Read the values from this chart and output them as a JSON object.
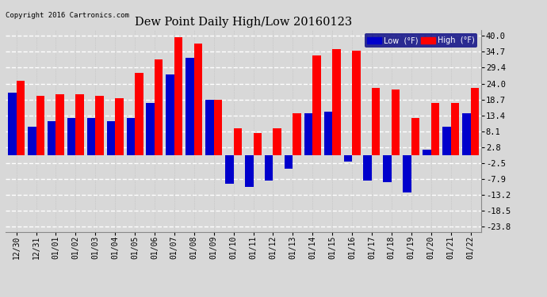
{
  "title": "Dew Point Daily High/Low 20160123",
  "copyright": "Copyright 2016 Cartronics.com",
  "dates": [
    "12/30",
    "12/31",
    "01/01",
    "01/02",
    "01/03",
    "01/04",
    "01/05",
    "01/06",
    "01/07",
    "01/08",
    "01/09",
    "01/10",
    "01/11",
    "01/12",
    "01/13",
    "01/14",
    "01/15",
    "01/16",
    "01/17",
    "01/18",
    "01/19",
    "01/20",
    "01/21",
    "01/22"
  ],
  "high": [
    25.0,
    20.0,
    20.5,
    20.5,
    20.0,
    19.0,
    27.5,
    32.0,
    39.5,
    37.5,
    18.5,
    9.0,
    7.5,
    9.0,
    14.0,
    33.5,
    35.5,
    35.0,
    22.5,
    22.0,
    12.5,
    17.5,
    17.5,
    22.5
  ],
  "low": [
    21.0,
    9.5,
    11.5,
    12.5,
    12.5,
    11.5,
    12.5,
    17.5,
    27.0,
    32.5,
    18.5,
    -9.5,
    -10.5,
    -8.5,
    -4.5,
    14.0,
    14.5,
    -2.0,
    -8.5,
    -9.0,
    -12.5,
    2.0,
    9.5,
    14.0
  ],
  "yticks": [
    40.0,
    34.7,
    29.4,
    24.0,
    18.7,
    13.4,
    8.1,
    2.8,
    -2.5,
    -7.9,
    -13.2,
    -18.5,
    -23.8
  ],
  "ylim": [
    -25.5,
    42.0
  ],
  "bar_width": 0.42,
  "high_color": "#FF0000",
  "low_color": "#0000CC",
  "bg_color": "#D8D8D8",
  "grid_color": "#FFFFFF",
  "legend_high_label": "High  (°F)",
  "legend_low_label": "Low  (°F)"
}
